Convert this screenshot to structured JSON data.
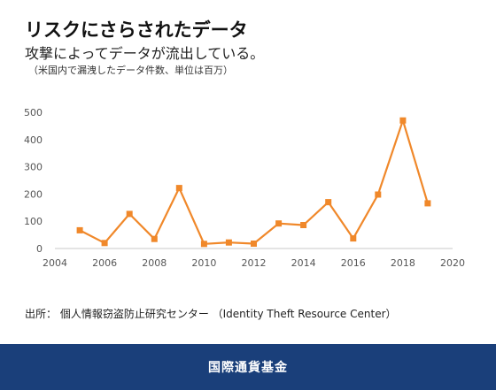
{
  "header": {
    "title": "リスクにさらされたデータ",
    "subtitle": "攻撃によってデータが流出している。",
    "unit_note": "（米国内で漏洩したデータ件数、単位は百万）"
  },
  "source": "出所： 個人情報窃盗防止研究センター （Identity Theft Resource Center）",
  "footer": {
    "org_name": "国際通貨基金"
  },
  "colors": {
    "series": "#f0882a",
    "axis": "#c8c8c8",
    "footer_bg": "#1a3f7a"
  },
  "chart_data": {
    "type": "line",
    "title": "",
    "xlabel": "",
    "ylabel": "",
    "x": [
      2005,
      2006,
      2007,
      2008,
      2009,
      2010,
      2011,
      2012,
      2013,
      2014,
      2015,
      2016,
      2017,
      2018,
      2019
    ],
    "values": [
      67,
      20,
      127,
      35,
      222,
      17,
      22,
      18,
      92,
      86,
      170,
      37,
      198,
      470,
      166
    ],
    "xlim": [
      2004,
      2020
    ],
    "ylim": [
      0,
      500
    ],
    "xticks": [
      2004,
      2006,
      2008,
      2010,
      2012,
      2014,
      2016,
      2018,
      2020
    ],
    "yticks": [
      0,
      100,
      200,
      300,
      400,
      500
    ],
    "grid": false,
    "legend": "none",
    "markers": "square"
  }
}
